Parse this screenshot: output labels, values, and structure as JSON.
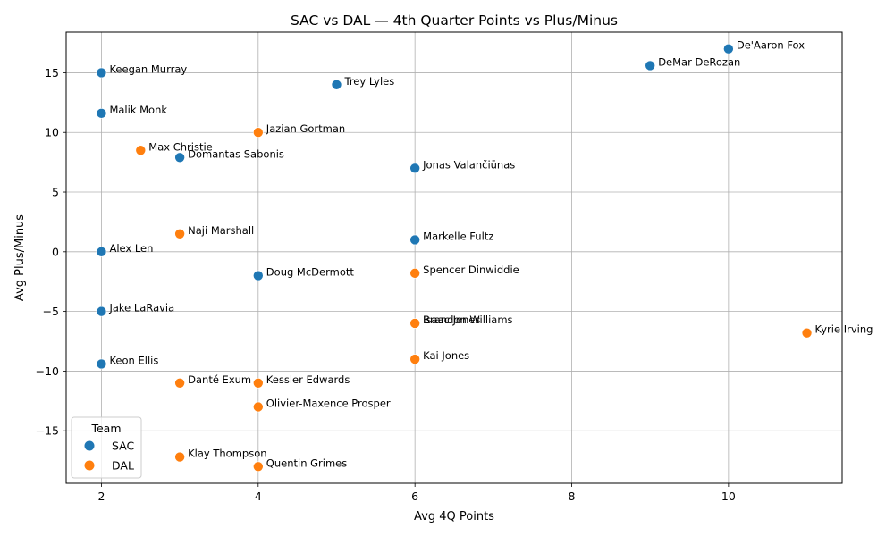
{
  "chart_data": {
    "type": "scatter",
    "title": "SAC vs DAL — 4th Quarter Points vs Plus/Minus",
    "xlabel": "Avg 4Q Points",
    "ylabel": "Avg Plus/Minus",
    "xlim": [
      1.55,
      11.45
    ],
    "ylim": [
      -19.4,
      18.4
    ],
    "xticks": [
      2,
      4,
      6,
      8,
      10
    ],
    "yticks": [
      -15,
      -10,
      -5,
      0,
      5,
      10,
      15
    ],
    "grid": true,
    "legend": {
      "title": "Team",
      "position": "lower-left"
    },
    "series": [
      {
        "name": "SAC",
        "color": "#1f77b4",
        "points": [
          {
            "label": "De'Aaron Fox",
            "x": 10,
            "y": 17.0
          },
          {
            "label": "DeMar DeRozan",
            "x": 9,
            "y": 15.6
          },
          {
            "label": "Keegan Murray",
            "x": 2,
            "y": 15.0
          },
          {
            "label": "Trey Lyles",
            "x": 5,
            "y": 14.0
          },
          {
            "label": "Malik Monk",
            "x": 2,
            "y": 11.6
          },
          {
            "label": "Domantas Sabonis",
            "x": 3,
            "y": 7.9
          },
          {
            "label": "Jonas Valančiūnas",
            "x": 6,
            "y": 7.0
          },
          {
            "label": "Markelle Fultz",
            "x": 6,
            "y": 1.0
          },
          {
            "label": "Alex Len",
            "x": 2,
            "y": 0.0
          },
          {
            "label": "Doug McDermott",
            "x": 4,
            "y": -2.0
          },
          {
            "label": "Jake LaRavia",
            "x": 2,
            "y": -5.0
          },
          {
            "label": "Isaac Jones",
            "x": 6,
            "y": -6.0
          },
          {
            "label": "Keon Ellis",
            "x": 2,
            "y": -9.4
          }
        ]
      },
      {
        "name": "DAL",
        "color": "#ff7f0e",
        "points": [
          {
            "label": "Jazian Gortman",
            "x": 4,
            "y": 10.0
          },
          {
            "label": "Max Christie",
            "x": 2.5,
            "y": 8.5
          },
          {
            "label": "Naji Marshall",
            "x": 3,
            "y": 1.5
          },
          {
            "label": "Spencer Dinwiddie",
            "x": 6,
            "y": -1.8
          },
          {
            "label": "Brandon Williams",
            "x": 6,
            "y": -6.0
          },
          {
            "label": "Kyrie Irving",
            "x": 11,
            "y": -6.8
          },
          {
            "label": "Kai Jones",
            "x": 6,
            "y": -9.0
          },
          {
            "label": "Danté Exum",
            "x": 3,
            "y": -11.0
          },
          {
            "label": "Kessler Edwards",
            "x": 4,
            "y": -11.0
          },
          {
            "label": "Olivier-Maxence Prosper",
            "x": 4,
            "y": -13.0
          },
          {
            "label": "Klay Thompson",
            "x": 3,
            "y": -17.2
          },
          {
            "label": "Quentin Grimes",
            "x": 4,
            "y": -18.0
          }
        ]
      }
    ]
  }
}
